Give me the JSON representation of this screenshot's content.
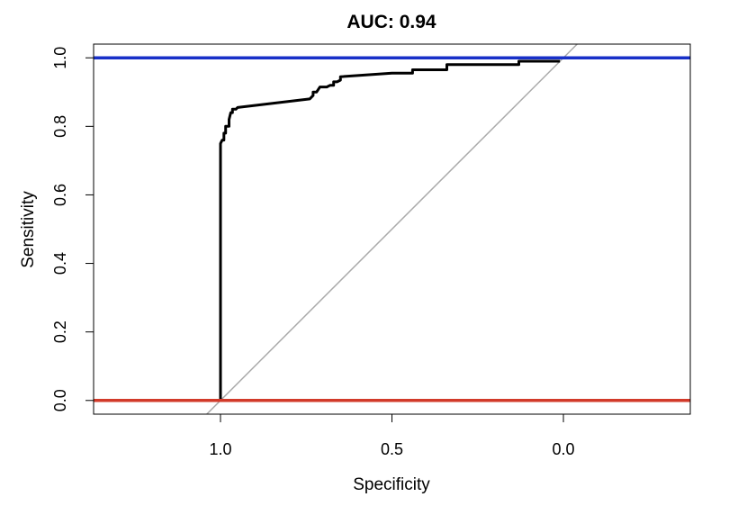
{
  "chart_data": {
    "type": "line",
    "title": "AUC: 0.94",
    "xlabel": "Specificity",
    "ylabel": "Sensitivity",
    "x_reversed": true,
    "xlim": [
      1.37,
      -0.37
    ],
    "ylim": [
      -0.04,
      1.04
    ],
    "x_ticks": [
      1.0,
      0.5,
      0.0
    ],
    "x_tick_labels": [
      "1.0",
      "0.5",
      "0.0"
    ],
    "y_ticks": [
      0.0,
      0.2,
      0.4,
      0.6,
      0.8,
      1.0
    ],
    "y_tick_labels": [
      "0.0",
      "0.2",
      "0.4",
      "0.6",
      "0.8",
      "1.0"
    ],
    "grid": false,
    "legend": "none",
    "series": [
      {
        "color": "#000000",
        "style": "roc-curve",
        "x": [
          1.0,
          1.0,
          0.995,
          0.99,
          0.99,
          0.985,
          0.985,
          0.975,
          0.975,
          0.97,
          0.965,
          0.965,
          0.955,
          0.95,
          0.74,
          0.73,
          0.73,
          0.72,
          0.71,
          0.69,
          0.68,
          0.67,
          0.67,
          0.66,
          0.65,
          0.65,
          0.5,
          0.44,
          0.44,
          0.34,
          0.34,
          0.13,
          0.13,
          0.01
        ],
        "y": [
          0.0,
          0.75,
          0.76,
          0.76,
          0.78,
          0.78,
          0.8,
          0.8,
          0.82,
          0.84,
          0.84,
          0.85,
          0.85,
          0.855,
          0.88,
          0.89,
          0.9,
          0.9,
          0.915,
          0.915,
          0.92,
          0.92,
          0.93,
          0.93,
          0.935,
          0.945,
          0.955,
          0.955,
          0.965,
          0.965,
          0.98,
          0.98,
          0.99,
          0.99
        ]
      },
      {
        "color": "#1830c8",
        "style": "horizontal-reference",
        "y": 1.0
      },
      {
        "color": "#d23a2a",
        "style": "horizontal-reference",
        "y": 0.0
      },
      {
        "color": "#aaaaaa",
        "style": "diagonal-reference",
        "x": [
          1.0,
          0.0
        ],
        "y": [
          0.0,
          1.0
        ]
      }
    ]
  }
}
